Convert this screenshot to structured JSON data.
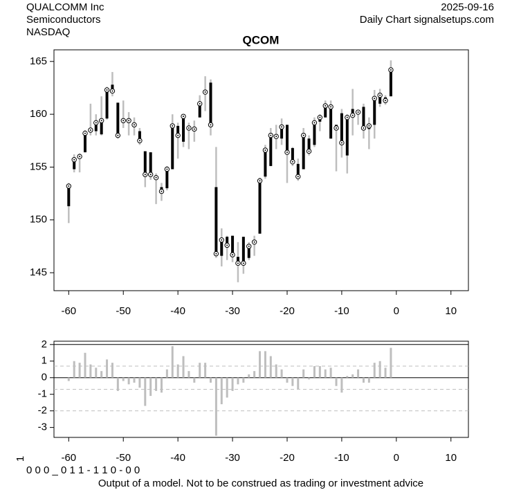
{
  "header": {
    "company": "QUALCOMM Inc",
    "sector": "Semiconductors",
    "exchange": "NASDAQ",
    "date": "2025-09-16",
    "source": "Daily Chart signalsetups.com"
  },
  "footer": {
    "rotated_label": "1",
    "code": "0 0 0 _ 0 1 1 - 1 1 0 - 0 0",
    "disclaimer": "Output of a model. Not to be construed as trading or investment advice"
  },
  "chart_data": [
    {
      "type": "candlestick",
      "title": "QCOM",
      "x": [
        -60,
        -59,
        -58,
        -57,
        -56,
        -55,
        -54,
        -53,
        -52,
        -51,
        -50,
        -49,
        -48,
        -47,
        -46,
        -45,
        -44,
        -43,
        -42,
        -41,
        -40,
        -39,
        -38,
        -37,
        -36,
        -35,
        -34,
        -33,
        -32,
        -31,
        -30,
        -29,
        -28,
        -27,
        -26,
        -25,
        -24,
        -23,
        -22,
        -21,
        -20,
        -19,
        -18,
        -17,
        -16,
        -15,
        -14,
        -13,
        -12,
        -11,
        -10,
        -9,
        -8,
        -7,
        -6,
        -5,
        -4,
        -3,
        -2,
        -1
      ],
      "open": [
        151.3,
        154.8,
        155.9,
        156.4,
        158.3,
        158.4,
        158.1,
        159.6,
        162.8,
        161.1,
        159.5,
        159.2,
        158.8,
        158.4,
        156.5,
        156.4,
        154.2,
        153.1,
        153.0,
        154.8,
        158.9,
        157.4,
        158.9,
        158.7,
        159.7,
        161.9,
        163.0,
        153.1,
        146.6,
        148.4,
        148.5,
        146.5,
        148.4,
        146.4,
        147.7,
        148.7,
        154.1,
        155.1,
        158.1,
        157.7,
        159.0,
        156.8,
        155.3,
        154.8,
        157.7,
        157.1,
        159.3,
        159.7,
        157.7,
        159.0,
        160.1,
        156.1,
        160.5,
        160.1,
        160.7,
        158.6,
        159.0,
        161.0,
        161.6,
        161.7
      ],
      "high": [
        153.5,
        156.2,
        156.3,
        158.5,
        161.0,
        160.0,
        161.7,
        162.6,
        164.0,
        161.1,
        161.3,
        160.2,
        159.7,
        158.7,
        156.5,
        156.4,
        154.4,
        153.5,
        155.1,
        160.0,
        159.2,
        160.0,
        159.2,
        159.4,
        161.8,
        163.6,
        163.3,
        156.9,
        149.2,
        148.5,
        148.5,
        147.9,
        148.4,
        147.9,
        148.5,
        154.0,
        157.1,
        158.7,
        159.0,
        159.6,
        159.0,
        156.9,
        155.8,
        158.7,
        158.0,
        159.7,
        160.0,
        161.3,
        161.3,
        159.0,
        160.5,
        160.0,
        162.4,
        160.4,
        161.0,
        159.7,
        162.3,
        162.4,
        161.8,
        165.1
      ],
      "low": [
        149.7,
        154.5,
        154.5,
        156.4,
        158.0,
        158.0,
        158.0,
        159.5,
        161.7,
        157.7,
        158.7,
        158.0,
        158.0,
        157.1,
        153.1,
        153.8,
        151.5,
        151.8,
        152.8,
        154.8,
        155.8,
        156.9,
        156.7,
        157.4,
        159.7,
        160.3,
        158.0,
        146.4,
        145.6,
        146.2,
        146.0,
        144.1,
        144.9,
        146.2,
        146.6,
        148.7,
        153.9,
        155.1,
        156.7,
        157.1,
        153.5,
        155.1,
        153.7,
        154.8,
        156.1,
        156.9,
        158.4,
        159.7,
        157.7,
        154.6,
        155.9,
        154.4,
        158.0,
        159.0,
        157.7,
        156.7,
        157.7,
        160.7,
        160.9,
        161.7
      ],
      "close": [
        153.2,
        155.7,
        156.0,
        158.2,
        158.5,
        159.2,
        159.4,
        162.3,
        162.2,
        158.0,
        159.4,
        159.4,
        159.0,
        157.5,
        154.3,
        154.3,
        154.0,
        152.7,
        154.8,
        158.9,
        158.0,
        159.8,
        158.7,
        158.6,
        161.0,
        162.1,
        159.0,
        146.8,
        148.1,
        147.6,
        146.7,
        145.9,
        145.9,
        147.5,
        147.9,
        153.7,
        156.6,
        158.0,
        157.9,
        158.8,
        156.4,
        155.5,
        154.1,
        158.0,
        156.5,
        159.2,
        159.7,
        160.8,
        160.7,
        158.7,
        157.3,
        159.7,
        159.9,
        160.2,
        158.7,
        158.9,
        161.5,
        161.8,
        161.3,
        164.2
      ],
      "range_color": "#bebebe",
      "body_color": "#000000",
      "xlim": [
        -62.7,
        13.2
      ],
      "xticks": [
        -60,
        -50,
        -40,
        -30,
        -20,
        -10,
        0,
        10
      ],
      "ylim": [
        143.3,
        166.1
      ],
      "yticks": [
        145,
        150,
        155,
        160,
        165
      ]
    },
    {
      "type": "bar",
      "x": [
        -60,
        -59,
        -58,
        -57,
        -56,
        -55,
        -54,
        -53,
        -52,
        -51,
        -50,
        -49,
        -48,
        -47,
        -46,
        -45,
        -44,
        -43,
        -42,
        -41,
        -40,
        -39,
        -38,
        -37,
        -36,
        -35,
        -34,
        -33,
        -32,
        -31,
        -30,
        -29,
        -28,
        -27,
        -26,
        -25,
        -24,
        -23,
        -22,
        -21,
        -20,
        -19,
        -18,
        -17,
        -16,
        -15,
        -14,
        -13,
        -12,
        -11,
        -10,
        -9,
        -8,
        -7,
        -6,
        -5,
        -4,
        -3,
        -2,
        -1
      ],
      "values": [
        -0.2,
        1.0,
        0.9,
        1.5,
        0.8,
        0.6,
        0.4,
        1.1,
        0.9,
        -0.8,
        -0.2,
        -0.4,
        -0.3,
        -0.6,
        -1.7,
        -1.1,
        -0.8,
        -0.9,
        0.5,
        1.9,
        0.8,
        1.3,
        0.4,
        -0.3,
        0.9,
        0.9,
        -0.3,
        -3.5,
        -1.6,
        -1.2,
        -0.8,
        -0.4,
        -0.3,
        0.2,
        0.4,
        1.6,
        1.6,
        1.3,
        0.8,
        0.5,
        -0.3,
        -0.5,
        -0.7,
        0.5,
        -0.1,
        0.7,
        0.7,
        0.5,
        0.6,
        -0.5,
        -0.9,
        0.1,
        0.2,
        0.5,
        -0.3,
        -0.3,
        0.9,
        1.0,
        0.6,
        1.8
      ],
      "color": "#bebebe",
      "reference_lines": [
        {
          "value": 2,
          "style": "solid"
        },
        {
          "value": 0.7,
          "style": "dashed"
        },
        {
          "value": 0,
          "style": "solid"
        },
        {
          "value": -0.7,
          "style": "dashed"
        },
        {
          "value": -2,
          "style": "dashed"
        }
      ],
      "xlim": [
        -62.7,
        13.2
      ],
      "xticks": [
        -60,
        -50,
        -40,
        -30,
        -20,
        -10,
        0,
        10
      ],
      "ylim": [
        -3.6,
        2.2
      ],
      "yticks": [
        -3,
        -2,
        -1,
        0,
        1,
        2
      ]
    }
  ]
}
